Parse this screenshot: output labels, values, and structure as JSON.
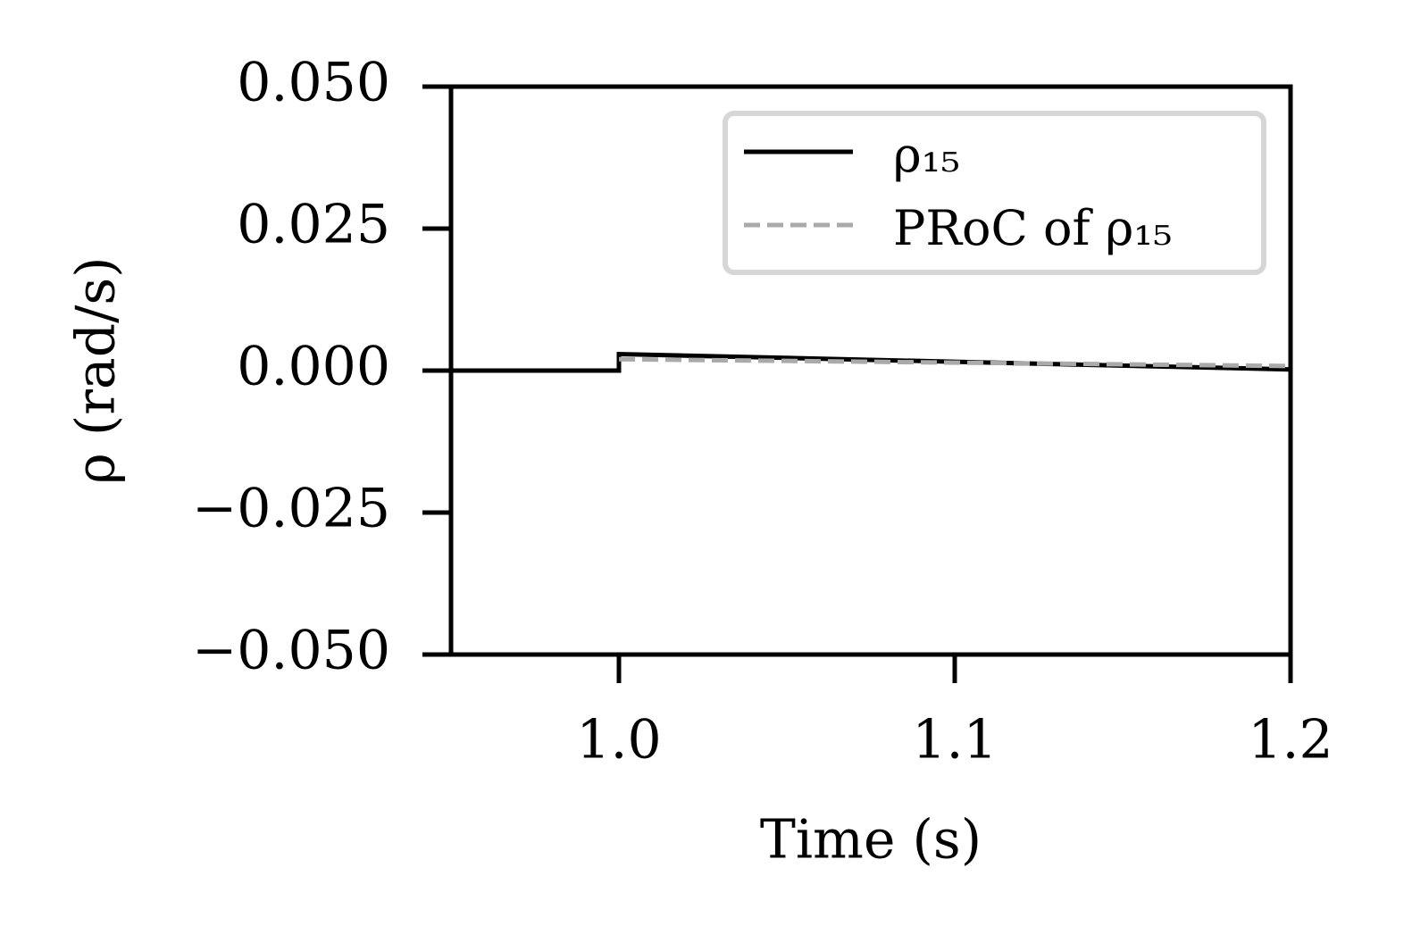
{
  "chart_data": {
    "type": "line",
    "xlabel": "Time (s)",
    "ylabel": "ρ (rad/s)",
    "xlim": [
      0.95,
      1.2
    ],
    "ylim": [
      -0.05,
      0.05
    ],
    "xticks": [
      {
        "value": 1.0,
        "label": "1.0"
      },
      1.1,
      1.2
    ],
    "yticks": [
      {
        "value": -0.05,
        "label": "−0.050"
      },
      {
        "value": -0.025,
        "label": "−0.025"
      },
      {
        "value": 0,
        "label": "0.000"
      },
      {
        "value": 0.025,
        "label": "0.025"
      },
      {
        "value": 0.05,
        "label": "0.050"
      }
    ],
    "legend": "upper right",
    "series": [
      {
        "name": "ρ₁₅",
        "color": "#000000",
        "dash": false,
        "x": [
          0.95,
          1.0,
          1.0,
          1.2
        ],
        "values": [
          0,
          0,
          0.0029,
          0.0002
        ]
      },
      {
        "name": "PRoC of ρ₁₅",
        "color": "#aaaaaa",
        "dash": true,
        "x": [
          1.0,
          1.2
        ],
        "values": [
          0.002,
          0.0008
        ]
      }
    ]
  }
}
